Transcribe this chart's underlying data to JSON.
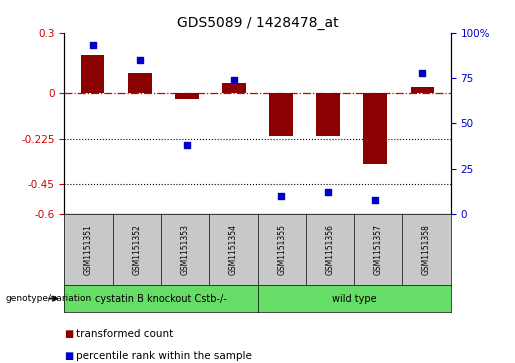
{
  "title": "GDS5089 / 1428478_at",
  "samples": [
    "GSM1151351",
    "GSM1151352",
    "GSM1151353",
    "GSM1151354",
    "GSM1151355",
    "GSM1151356",
    "GSM1151357",
    "GSM1151358"
  ],
  "transformed_count": [
    0.19,
    0.1,
    -0.03,
    0.05,
    -0.21,
    -0.21,
    -0.35,
    0.03
  ],
  "percentile_rank": [
    93,
    85,
    38,
    74,
    10,
    12,
    8,
    78
  ],
  "bar_color": "#8B0000",
  "dot_color": "#0000CC",
  "ylim_left": [
    -0.6,
    0.3
  ],
  "ylim_right": [
    0,
    100
  ],
  "yticks_left": [
    -0.6,
    -0.45,
    -0.225,
    0,
    0.3
  ],
  "ytick_labels_left": [
    "-0.6",
    "-0.45",
    "-0.225",
    "0",
    "0.3"
  ],
  "yticks_right": [
    0,
    25,
    50,
    75,
    100
  ],
  "ytick_labels_right": [
    "0",
    "25",
    "50",
    "75",
    "100%"
  ],
  "hline_y": 0,
  "dotted_lines": [
    -0.225,
    -0.45
  ],
  "group1_label": "cystatin B knockout Cstb-/-",
  "group2_label": "wild type",
  "group1_color": "#66DD66",
  "group2_color": "#66DD66",
  "genotype_label": "genotype/variation",
  "legend_bar_label": "transformed count",
  "legend_dot_label": "percentile rank within the sample",
  "bar_width": 0.5,
  "background_color": "#ffffff",
  "left_tick_color": "#CC0000",
  "right_tick_color": "#0000CC",
  "sample_box_color": "#C8C8C8",
  "title_fontsize": 10,
  "tick_fontsize": 7.5,
  "label_fontsize": 7,
  "legend_fontsize": 7.5
}
